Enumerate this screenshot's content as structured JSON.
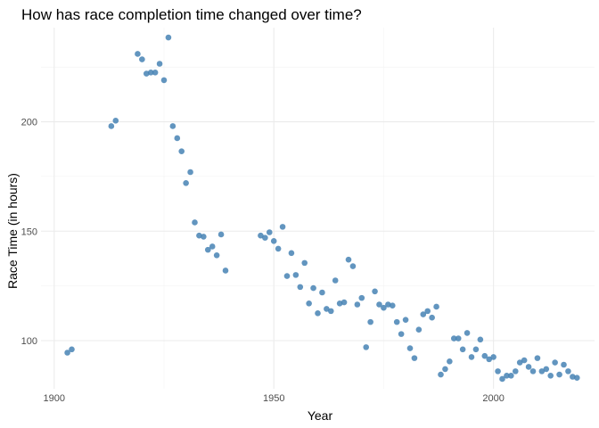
{
  "chart_data": {
    "type": "scatter",
    "title": "How has race completion time changed over time?",
    "xlabel": "Year",
    "ylabel": "Race Time (in hours)",
    "xlim": [
      1897,
      2023
    ],
    "ylim": [
      78,
      243
    ],
    "x_ticks": [
      1900,
      1950,
      2000
    ],
    "y_ticks": [
      100,
      150,
      200
    ],
    "x_minor_ticks": [
      1925,
      1975,
      2025
    ],
    "y_minor_ticks": [
      125,
      175,
      225
    ],
    "grid": true,
    "color": "#4682b4",
    "points": [
      {
        "x": 1903,
        "y": 94.5
      },
      {
        "x": 1904,
        "y": 96
      },
      {
        "x": 1913,
        "y": 198
      },
      {
        "x": 1914,
        "y": 200.5
      },
      {
        "x": 1919,
        "y": 231
      },
      {
        "x": 1920,
        "y": 228.5
      },
      {
        "x": 1921,
        "y": 222
      },
      {
        "x": 1922,
        "y": 222.5
      },
      {
        "x": 1923,
        "y": 222.5
      },
      {
        "x": 1924,
        "y": 226.5
      },
      {
        "x": 1925,
        "y": 219
      },
      {
        "x": 1926,
        "y": 238.5
      },
      {
        "x": 1927,
        "y": 198
      },
      {
        "x": 1928,
        "y": 192.5
      },
      {
        "x": 1929,
        "y": 186.5
      },
      {
        "x": 1930,
        "y": 172
      },
      {
        "x": 1931,
        "y": 177
      },
      {
        "x": 1932,
        "y": 154
      },
      {
        "x": 1933,
        "y": 148
      },
      {
        "x": 1934,
        "y": 147.5
      },
      {
        "x": 1935,
        "y": 141.5
      },
      {
        "x": 1936,
        "y": 143
      },
      {
        "x": 1937,
        "y": 139
      },
      {
        "x": 1938,
        "y": 148.5
      },
      {
        "x": 1939,
        "y": 132
      },
      {
        "x": 1947,
        "y": 148
      },
      {
        "x": 1948,
        "y": 147
      },
      {
        "x": 1949,
        "y": 149.5
      },
      {
        "x": 1950,
        "y": 145.5
      },
      {
        "x": 1951,
        "y": 142
      },
      {
        "x": 1952,
        "y": 152
      },
      {
        "x": 1953,
        "y": 129.5
      },
      {
        "x": 1954,
        "y": 140
      },
      {
        "x": 1955,
        "y": 130
      },
      {
        "x": 1956,
        "y": 124.5
      },
      {
        "x": 1957,
        "y": 135.5
      },
      {
        "x": 1958,
        "y": 117
      },
      {
        "x": 1959,
        "y": 124
      },
      {
        "x": 1960,
        "y": 112.5
      },
      {
        "x": 1961,
        "y": 122
      },
      {
        "x": 1962,
        "y": 114.5
      },
      {
        "x": 1963,
        "y": 113.5
      },
      {
        "x": 1964,
        "y": 127.5
      },
      {
        "x": 1965,
        "y": 117
      },
      {
        "x": 1966,
        "y": 117.5
      },
      {
        "x": 1967,
        "y": 137
      },
      {
        "x": 1968,
        "y": 134
      },
      {
        "x": 1969,
        "y": 116.5
      },
      {
        "x": 1970,
        "y": 119.5
      },
      {
        "x": 1971,
        "y": 97
      },
      {
        "x": 1972,
        "y": 108.5
      },
      {
        "x": 1973,
        "y": 122.5
      },
      {
        "x": 1974,
        "y": 116.5
      },
      {
        "x": 1975,
        "y": 115
      },
      {
        "x": 1976,
        "y": 116.5
      },
      {
        "x": 1977,
        "y": 116
      },
      {
        "x": 1978,
        "y": 108.5
      },
      {
        "x": 1979,
        "y": 103
      },
      {
        "x": 1980,
        "y": 109.5
      },
      {
        "x": 1981,
        "y": 96.5
      },
      {
        "x": 1982,
        "y": 92
      },
      {
        "x": 1983,
        "y": 105
      },
      {
        "x": 1984,
        "y": 112
      },
      {
        "x": 1985,
        "y": 113.5
      },
      {
        "x": 1986,
        "y": 110.5
      },
      {
        "x": 1987,
        "y": 115.5
      },
      {
        "x": 1988,
        "y": 84.5
      },
      {
        "x": 1989,
        "y": 87
      },
      {
        "x": 1990,
        "y": 90.5
      },
      {
        "x": 1991,
        "y": 101
      },
      {
        "x": 1992,
        "y": 101
      },
      {
        "x": 1993,
        "y": 96
      },
      {
        "x": 1994,
        "y": 103.5
      },
      {
        "x": 1995,
        "y": 92.5
      },
      {
        "x": 1996,
        "y": 96
      },
      {
        "x": 1997,
        "y": 100.5
      },
      {
        "x": 1998,
        "y": 93
      },
      {
        "x": 1999,
        "y": 91.5
      },
      {
        "x": 2000,
        "y": 92.5
      },
      {
        "x": 2001,
        "y": 86
      },
      {
        "x": 2002,
        "y": 82.5
      },
      {
        "x": 2003,
        "y": 84
      },
      {
        "x": 2004,
        "y": 84
      },
      {
        "x": 2005,
        "y": 86
      },
      {
        "x": 2006,
        "y": 90
      },
      {
        "x": 2007,
        "y": 91
      },
      {
        "x": 2008,
        "y": 88
      },
      {
        "x": 2009,
        "y": 86
      },
      {
        "x": 2010,
        "y": 92
      },
      {
        "x": 2011,
        "y": 86
      },
      {
        "x": 2012,
        "y": 87
      },
      {
        "x": 2013,
        "y": 84
      },
      {
        "x": 2014,
        "y": 90
      },
      {
        "x": 2015,
        "y": 84.5
      },
      {
        "x": 2016,
        "y": 89
      },
      {
        "x": 2017,
        "y": 86
      },
      {
        "x": 2018,
        "y": 83.5
      },
      {
        "x": 2019,
        "y": 83
      }
    ]
  }
}
